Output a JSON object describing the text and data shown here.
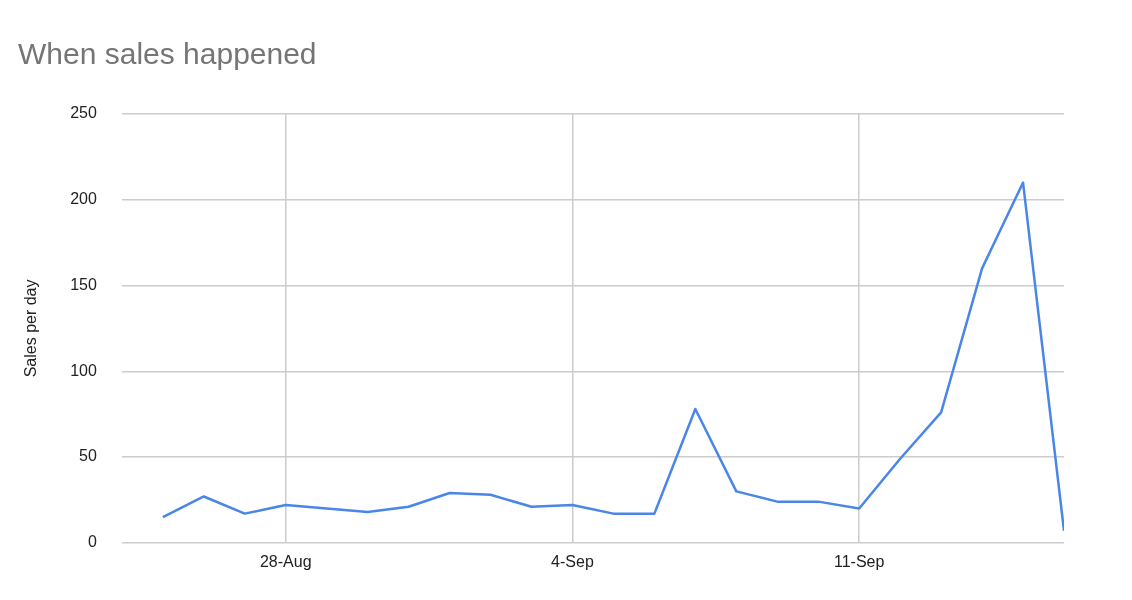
{
  "chart_data": {
    "type": "line",
    "title": "When sales happened",
    "ylabel": "Sales per day",
    "x": [
      "--08-25",
      "--08-26",
      "--08-27",
      "--08-28",
      "--08-29",
      "--08-30",
      "--08-31",
      "--09-01",
      "--09-02",
      "--09-03",
      "--09-04",
      "--09-05",
      "--09-06",
      "--09-07",
      "--09-08",
      "--09-09",
      "--09-10",
      "--09-11",
      "--09-12",
      "--09-13",
      "--09-14",
      "--09-15",
      "--09-16"
    ],
    "series": [
      {
        "color": "#4a86e8",
        "values": [
          15,
          27,
          17,
          22,
          20,
          18,
          21,
          29,
          28,
          21,
          22,
          17,
          17,
          78,
          30,
          24,
          24,
          20,
          49,
          76,
          160,
          210,
          7
        ]
      }
    ],
    "xlim": [
      "--08-24",
      "--09-16"
    ],
    "xticks": [
      {
        "value": "--08-28",
        "label": "28-Aug"
      },
      {
        "value": "--09-04",
        "label": "4-Sep"
      },
      {
        "value": "--09-11",
        "label": "11-Sep"
      }
    ],
    "ylim": [
      0,
      250
    ],
    "yticks": [
      0,
      50,
      100,
      150,
      200,
      250
    ],
    "grid": true,
    "legend": false,
    "marker": "none",
    "line_style": "solid"
  }
}
